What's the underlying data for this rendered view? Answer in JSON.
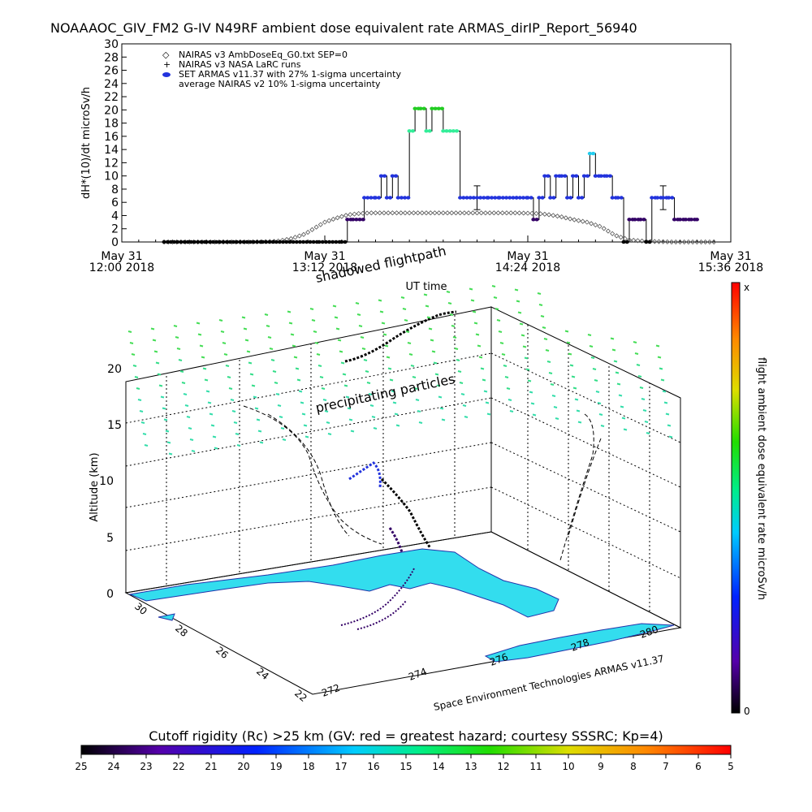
{
  "title": "NOAAAOC_GIV_FM2 G-IV    N49RF   ambient dose equivalent rate ARMAS_dirIP_Report_56940",
  "chart_data": [
    {
      "type": "scatter",
      "ylabel": "dH*(10)/dt microSv/h",
      "xlabel": "UT time",
      "ylim": [
        0,
        30
      ],
      "yticks": [
        "0",
        "2",
        "4",
        "6",
        "8",
        "10",
        "12",
        "14",
        "16",
        "18",
        "20",
        "22",
        "24",
        "26",
        "28",
        "30"
      ],
      "xlim_min": [
        0,
        216
      ],
      "xticks": [
        {
          "min": 0,
          "line1": "May 31",
          "line2": "12:00 2018"
        },
        {
          "min": 72,
          "line1": "May 31",
          "line2": "13:12 2018"
        },
        {
          "min": 144,
          "line1": "May 31",
          "line2": "14:24 2018"
        },
        {
          "min": 216,
          "line1": "May 31",
          "line2": "15:36 2018"
        }
      ],
      "legend_position": "top-left",
      "legend": [
        {
          "symbol": "diamond",
          "label": "NAIRAS v3 AmbDoseEq_G0.txt SEP=0"
        },
        {
          "symbol": "plus",
          "label": "NAIRAS v3 NASA LaRC runs"
        },
        {
          "symbol": "dot",
          "label": "SET ARMAS v11.37 with 27% 1-sigma uncertainty"
        },
        {
          "symbol": "none",
          "label": "average NAIRAS v2 10% 1-sigma uncertainty"
        }
      ],
      "series": [
        {
          "name": "NAIRAS v3 AmbDoseEq_G0.txt SEP=0",
          "x": [
            15,
            30,
            45,
            55,
            60,
            65,
            68,
            72,
            76,
            80,
            84,
            88,
            92,
            96,
            100,
            110,
            120,
            130,
            140,
            148,
            152,
            156,
            160,
            165,
            170,
            175,
            180,
            186,
            195,
            210
          ],
          "y": [
            0,
            0,
            0,
            0.1,
            0.5,
            1.2,
            2,
            3,
            3.6,
            4.1,
            4.3,
            4.4,
            4.4,
            4.4,
            4.4,
            4.4,
            4.4,
            4.4,
            4.4,
            4.3,
            4.1,
            3.8,
            3.4,
            3,
            2.3,
            1,
            0.3,
            0.1,
            0,
            0
          ]
        },
        {
          "name": "SET ARMAS v11.37 with 27% 1-sigma uncertainty",
          "x": [
            15,
            30,
            50,
            70,
            78,
            80,
            82,
            86,
            90,
            92,
            94,
            96,
            98,
            102,
            104,
            106,
            108,
            110,
            114,
            120,
            126,
            130,
            134,
            140,
            144,
            146,
            148,
            150,
            152,
            154,
            156,
            158,
            160,
            162,
            164,
            166,
            168,
            170,
            172,
            174,
            176,
            178,
            180,
            182,
            184,
            186,
            188,
            190,
            192,
            194,
            196,
            198,
            200,
            202,
            204
          ],
          "y": [
            0,
            0,
            0,
            0,
            0,
            3.4,
            3.4,
            6.7,
            6.7,
            10,
            6.7,
            10,
            6.7,
            16.8,
            20.2,
            20.2,
            16.8,
            20.2,
            16.8,
            6.7,
            6.7,
            6.7,
            6.7,
            6.7,
            6.7,
            3.4,
            6.7,
            10,
            6.7,
            10,
            10,
            6.7,
            10,
            6.7,
            10,
            13.4,
            10,
            10,
            10,
            6.7,
            6.7,
            0,
            3.4,
            3.4,
            3.4,
            0,
            6.7,
            6.7,
            6.7,
            6.7,
            3.4,
            3.4,
            3.4,
            3.4,
            3.4
          ],
          "error_bars": [
            {
              "x": 126,
              "y": 6.7,
              "sd": 1.8
            },
            {
              "x": 192,
              "y": 6.7,
              "sd": 1.8
            }
          ]
        }
      ]
    },
    {
      "type": "scatter",
      "title": "shadowed flightpath",
      "annotation": "precipitating particles",
      "zlabel": "Altitude (km)",
      "zticks": [
        "0",
        "5",
        "10",
        "15",
        "20"
      ],
      "xticks": [
        "272",
        "274",
        "276",
        "278",
        "280"
      ],
      "yticks": [
        "22",
        "24",
        "26",
        "28",
        "30"
      ],
      "credit": "Space Environment Technologies ARMAS v11.37",
      "colorbar": {
        "label": "flight ambient dose equivalent rate microSv/h",
        "top": "x",
        "bottom": "0"
      }
    }
  ],
  "bottom_colorbar": {
    "label": "Cutoff rigidity (Rc) >25 km (GV: red = greatest hazard; courtesy SSSRC; Kp=4)",
    "ticks": [
      "25",
      "24",
      "23",
      "22",
      "21",
      "20",
      "19",
      "18",
      "17",
      "16",
      "15",
      "14",
      "13",
      "12",
      "11",
      "10",
      "9",
      "8",
      "7",
      "6",
      "5"
    ]
  },
  "colors": {
    "nairas": "#555555",
    "armas_low": "#330066",
    "armas_mid": "#2233dd",
    "armas_high": "#22cc22",
    "ground": "#33ddee",
    "particles": "#33dd99"
  }
}
